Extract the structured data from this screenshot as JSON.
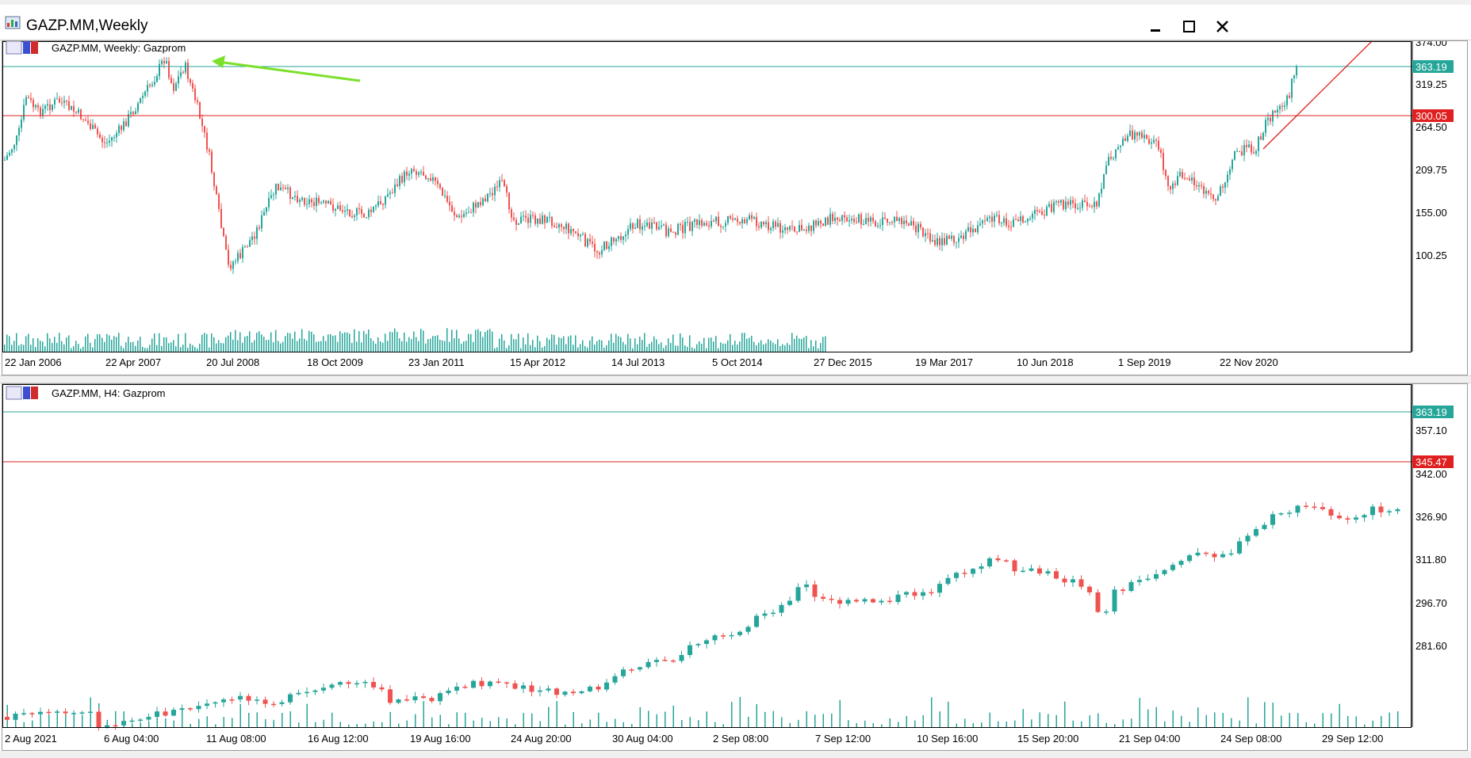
{
  "window": {
    "title": "GAZP.MM,Weekly",
    "icon": "chart-window-icon",
    "controls": [
      "minimize-icon",
      "maximize-icon",
      "close-icon"
    ]
  },
  "colors": {
    "bull": "#26a69a",
    "bear": "#ef5350",
    "level": "#e02020",
    "bid": "#26a69a",
    "arrow": "#7be02a",
    "volume": "#26a69a"
  },
  "weekly_chart": {
    "header": "GAZP.MM, Weekly:  Gazprom",
    "price_axis": [
      "374.00",
      "319.25",
      "264.50",
      "209.75",
      "155.00",
      "100.25"
    ],
    "time_axis": [
      "22 Jan 2006",
      "22 Apr 2007",
      "20 Jul 2008",
      "18 Oct 2009",
      "23 Jan 2011",
      "15 Apr 2012",
      "14 Jul 2013",
      "5 Oct 2014",
      "27 Dec 2015",
      "19 Mar 2017",
      "10 Jun 2018",
      "1 Sep 2019",
      "22 Nov 2020"
    ],
    "bid_line": {
      "price": "363.19"
    },
    "horizontal_line": {
      "price": "300.05"
    }
  },
  "h4_chart": {
    "header": "GAZP.MM, H4:  Gazprom",
    "price_axis": [
      "357.10",
      "342.00",
      "326.90",
      "311.80",
      "296.70",
      "281.60"
    ],
    "time_axis": [
      "2 Aug 2021",
      "6 Aug 04:00",
      "11 Aug 08:00",
      "16 Aug 12:00",
      "19 Aug 16:00",
      "24 Aug 20:00",
      "30 Aug 04:00",
      "2 Sep 08:00",
      "7 Sep 12:00",
      "10 Sep 16:00",
      "15 Sep 20:00",
      "21 Sep 04:00",
      "24 Sep 08:00",
      "29 Sep 12:00"
    ],
    "bid_line": {
      "price": "363.19"
    },
    "horizontal_line": {
      "price": "345.47"
    }
  }
}
